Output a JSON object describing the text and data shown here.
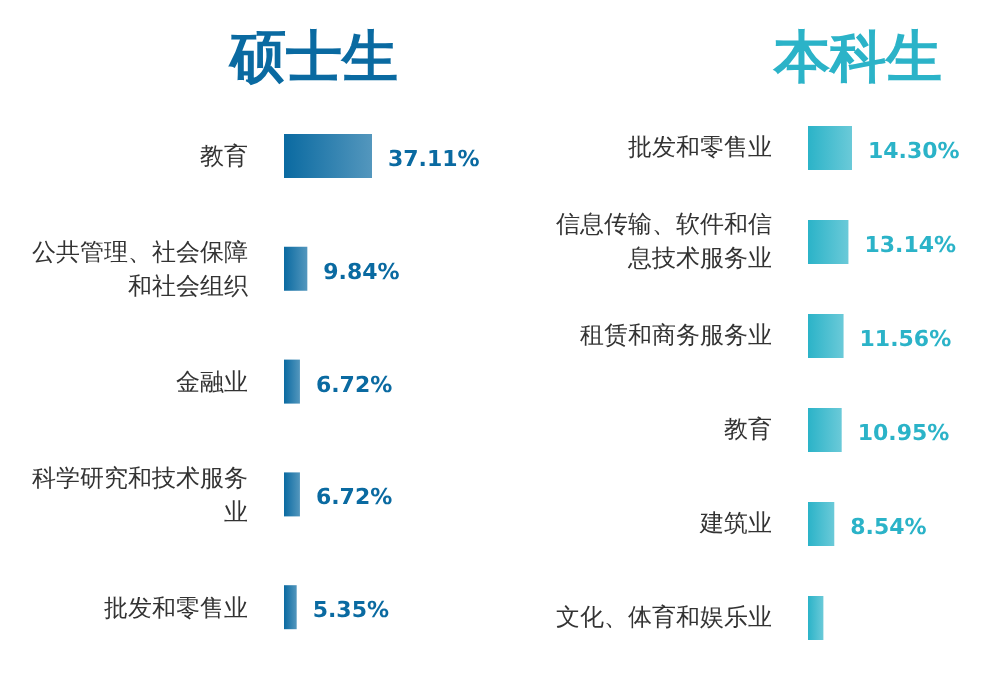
{
  "chart_data": [
    {
      "type": "bar",
      "orientation": "horizontal",
      "title": "硕士生",
      "categories": [
        "教育",
        "公共管理、社会保障和社会组织",
        "金融业",
        "科学研究和技术服务业",
        "批发和零售业"
      ],
      "values": [
        37.11,
        9.84,
        6.72,
        6.72,
        5.35
      ],
      "value_labels": [
        "37.11%",
        "9.84%",
        "6.72%",
        "6.72%",
        "5.35%"
      ],
      "color": "#0a6aa1"
    },
    {
      "type": "bar",
      "orientation": "horizontal",
      "title": "本科生",
      "categories": [
        "批发和零售业",
        "信息传输、软件和信息技术服务业",
        "租赁和商务服务业",
        "教育",
        "建筑业",
        "文化、体育和娱乐业"
      ],
      "values": [
        14.3,
        13.14,
        11.56,
        10.95,
        8.54,
        5
      ],
      "value_labels": [
        "14.30%",
        "13.14%",
        "11.56%",
        "10.95%",
        "8.54%",
        null
      ],
      "color": "#2bb3c8"
    }
  ]
}
